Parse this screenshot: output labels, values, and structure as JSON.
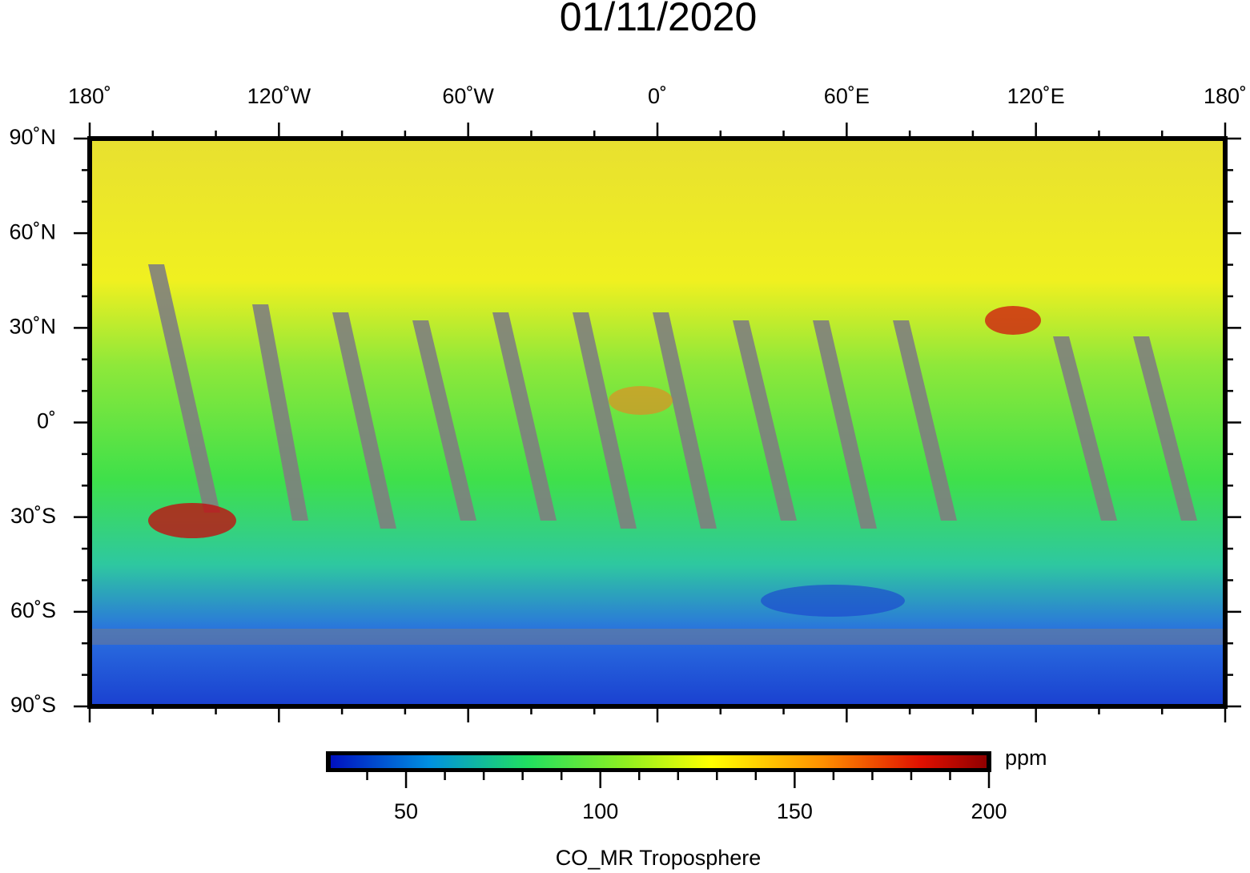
{
  "chart_data": {
    "type": "map",
    "title": "01/11/2020",
    "xlim": [
      -180,
      180
    ],
    "xticks": [
      {
        "value": -180,
        "label": "180˚"
      },
      {
        "value": -120,
        "label": "120˚W"
      },
      {
        "value": -60,
        "label": "60˚W"
      },
      {
        "value": 0,
        "label": "0˚"
      },
      {
        "value": 60,
        "label": "60˚E"
      },
      {
        "value": 120,
        "label": "120˚E"
      },
      {
        "value": 180,
        "label": "180˚"
      }
    ],
    "xminor_ticks": [
      -160,
      -140,
      -100,
      -80,
      -40,
      -20,
      20,
      40,
      80,
      100,
      140,
      160
    ],
    "ylim": [
      -90,
      90
    ],
    "yticks": [
      {
        "value": 90,
        "label": "90˚N"
      },
      {
        "value": 60,
        "label": "60˚N"
      },
      {
        "value": 30,
        "label": "30˚N"
      },
      {
        "value": 0,
        "label": "0˚"
      },
      {
        "value": -30,
        "label": "30˚S"
      },
      {
        "value": -60,
        "label": "60˚S"
      },
      {
        "value": -90,
        "label": "90˚S"
      }
    ],
    "yminor_ticks": [
      80,
      70,
      50,
      40,
      20,
      10,
      -10,
      -20,
      -40,
      -50,
      -70,
      -80
    ],
    "colorbar": {
      "lim": [
        30,
        200
      ],
      "ticks": [
        50,
        100,
        150,
        200
      ],
      "minor_ticks": [
        40,
        60,
        70,
        80,
        90,
        110,
        120,
        130,
        140,
        160,
        170,
        180,
        190
      ],
      "unit": "ppm",
      "label": "CO_MR Troposphere"
    }
  }
}
